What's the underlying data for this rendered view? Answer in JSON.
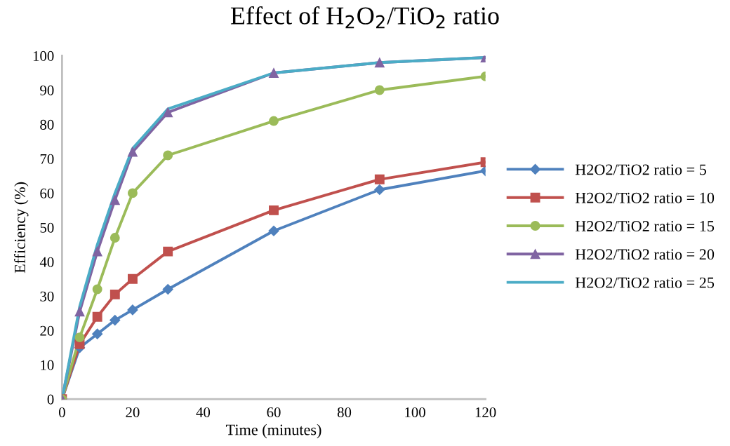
{
  "chart_data": {
    "type": "line",
    "title": "Effect of H$_{2}$O$_{2}$/TiO$_{2}$ ratio",
    "xlabel": "Time (minutes)",
    "ylabel": "Efficiency (%)",
    "x": [
      0,
      5,
      10,
      15,
      20,
      30,
      60,
      90,
      120
    ],
    "series": [
      {
        "name": "H2O2/TiO2 ratio = 5",
        "color": "#4f81bd",
        "marker": "diamond",
        "values": [
          0,
          15,
          19,
          23,
          26,
          32,
          49,
          61,
          66.5
        ]
      },
      {
        "name": "H2O2/TiO2 ratio = 10",
        "color": "#c0504d",
        "marker": "square",
        "values": [
          0,
          16,
          24,
          30.5,
          35,
          43,
          55,
          64,
          69
        ]
      },
      {
        "name": "H2O2/TiO2 ratio = 15",
        "color": "#9bbb59",
        "marker": "circle",
        "values": [
          0,
          18,
          32,
          47,
          60,
          71,
          81,
          90,
          94
        ]
      },
      {
        "name": "H2O2/TiO2 ratio = 20",
        "color": "#8064a2",
        "marker": "triangle",
        "values": [
          0,
          25.5,
          43,
          58,
          72,
          83.5,
          95,
          98,
          99.5
        ]
      },
      {
        "name": "H2O2/TiO2 ratio = 25",
        "color": "#4bacc6",
        "marker": "none",
        "values": [
          0,
          27,
          45,
          60,
          73,
          84.5,
          95,
          98,
          99.5
        ]
      }
    ],
    "xlim": [
      0,
      120
    ],
    "xticks": [
      0,
      20,
      40,
      60,
      80,
      100,
      120
    ],
    "ylim": [
      0,
      100
    ],
    "yticks": [
      0,
      10,
      20,
      30,
      40,
      50,
      60,
      70,
      80,
      90,
      100
    ],
    "grid": false,
    "legend": "right",
    "line_style": "solid"
  }
}
